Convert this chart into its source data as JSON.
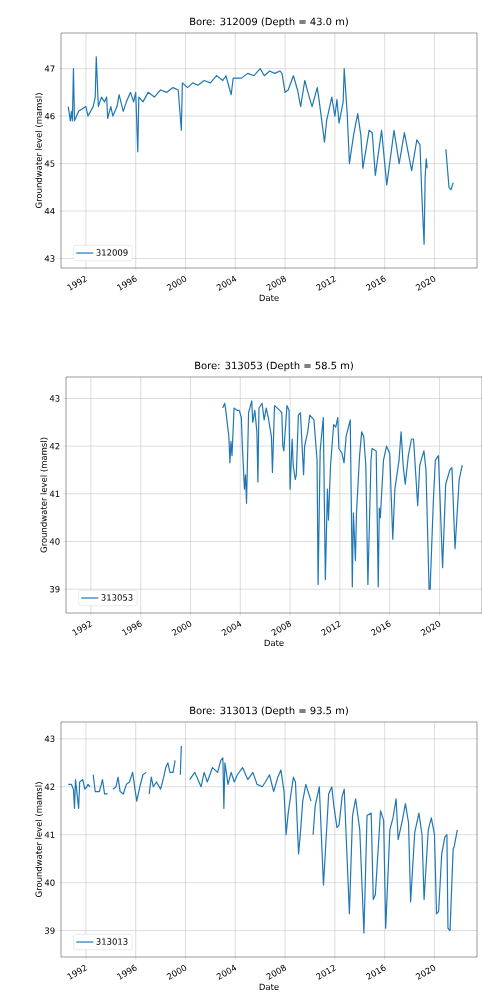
{
  "chart_data": [
    {
      "type": "line",
      "title": "Bore: 312009 (Depth = 43.0 m)",
      "xlabel": "Date",
      "ylabel": "Groundwater level (mamsl)",
      "x": [
        "1990-08",
        "1990-10",
        "1990-11",
        "1990-12",
        "1991-01",
        "1991-02",
        "1991-06",
        "1992-01",
        "1992-03",
        "1992-08",
        "1992-10",
        "1992-11",
        "1993-01",
        "1993-04",
        "1993-07",
        "1993-09",
        "1993-10",
        "1994-01",
        "1994-03",
        "1994-07",
        "1994-09",
        "1995-01",
        "1995-04",
        "1995-08",
        "1995-11",
        "1996-01",
        "1996-03",
        "1996-04",
        "1996-08",
        "1997-01",
        "1997-07",
        "1998-01",
        "1998-07",
        "1999-01",
        "1999-06",
        "1999-09",
        "1999-10",
        "2000-03",
        "2000-08",
        "2001-01",
        "2001-07",
        "2002-01",
        "2002-07",
        "2003-01",
        "2003-04",
        "2003-09",
        "2003-11",
        "2004-07",
        "2005-01",
        "2005-07",
        "2006-01",
        "2006-05",
        "2006-10",
        "2007-03",
        "2007-08",
        "2007-10",
        "2008-01",
        "2008-04",
        "2008-09",
        "2009-01",
        "2009-04",
        "2009-08",
        "2009-11",
        "2010-03",
        "2010-08",
        "2010-10",
        "2011-03",
        "2011-05",
        "2011-10",
        "2012-01",
        "2012-03",
        "2012-05",
        "2012-09",
        "2012-10",
        "2013-01",
        "2013-03",
        "2013-07",
        "2013-11",
        "2014-02",
        "2014-04",
        "2014-10",
        "2015-01",
        "2015-04",
        "2015-10",
        "2016-03",
        "2016-07",
        "2016-10",
        "2017-03",
        "2017-08",
        "2018-03",
        "2018-08",
        "2018-11",
        "2019-01",
        "2019-03",
        "2019-04",
        "2019-05",
        "2019-06",
        "2020-01",
        "2020-12",
        "2021-03",
        "2021-05",
        "2021-07"
      ],
      "series": [
        {
          "name": "312009",
          "color": "#1f77b4",
          "values": [
            46.2,
            45.9,
            46.1,
            45.9,
            47.0,
            45.9,
            46.1,
            46.2,
            46.0,
            46.2,
            46.4,
            47.25,
            46.2,
            46.4,
            46.3,
            46.4,
            45.95,
            46.2,
            46.0,
            46.2,
            46.45,
            46.1,
            46.3,
            46.5,
            46.3,
            46.5,
            45.25,
            46.4,
            46.3,
            46.5,
            46.4,
            46.55,
            46.5,
            46.6,
            46.55,
            45.7,
            46.7,
            46.6,
            46.7,
            46.65,
            46.75,
            46.7,
            46.85,
            46.75,
            46.85,
            46.45,
            46.8,
            46.8,
            46.9,
            46.85,
            47.0,
            46.85,
            46.95,
            46.9,
            46.95,
            46.9,
            46.5,
            46.55,
            46.85,
            46.55,
            46.2,
            46.75,
            46.5,
            46.2,
            46.6,
            46.3,
            45.45,
            45.9,
            46.4,
            46.0,
            46.35,
            45.85,
            46.3,
            47.0,
            46.0,
            45.0,
            45.6,
            46.05,
            45.6,
            44.9,
            45.7,
            45.65,
            44.75,
            45.7,
            44.55,
            45.2,
            45.7,
            45.0,
            45.65,
            44.85,
            45.5,
            45.4,
            44.25,
            43.3,
            44.7,
            45.1,
            44.9,
            null,
            45.3,
            44.5,
            44.45,
            44.6
          ]
        }
      ],
      "xlim": [
        "1990-01",
        "2023-06"
      ],
      "ylim": [
        42.8,
        47.75
      ],
      "xticks": [
        "1992",
        "1996",
        "2000",
        "2004",
        "2008",
        "2012",
        "2016",
        "2020"
      ],
      "yticks": [
        43,
        44,
        45,
        46,
        47
      ],
      "grid": true,
      "legend": "bottom left"
    },
    {
      "type": "line",
      "title": "Bore: 313053 (Depth = 58.5 m)",
      "xlabel": "Date",
      "ylabel": "Groundwater level (mamsl)",
      "x": [
        "2002-08",
        "2002-10",
        "2002-11",
        "2003-02",
        "2003-03",
        "2003-04",
        "2003-05",
        "2003-07",
        "2003-10",
        "2003-12",
        "2004-02",
        "2004-03",
        "2004-05",
        "2004-06",
        "2004-07",
        "2004-09",
        "2004-12",
        "2005-01",
        "2005-03",
        "2005-05",
        "2005-06",
        "2005-07",
        "2005-10",
        "2005-12",
        "2006-02",
        "2006-04",
        "2006-07",
        "2006-08",
        "2006-10",
        "2007-03",
        "2007-05",
        "2007-06",
        "2007-07",
        "2007-10",
        "2007-12",
        "2008-01",
        "2008-03",
        "2008-04",
        "2008-06",
        "2008-07",
        "2008-09",
        "2008-11",
        "2009-02",
        "2009-03",
        "2009-06",
        "2009-08",
        "2009-12",
        "2010-03",
        "2010-04",
        "2010-06",
        "2010-09",
        "2010-11",
        "2011-01",
        "2011-02",
        "2011-04",
        "2011-07",
        "2011-09",
        "2011-11",
        "2011-12",
        "2012-03",
        "2012-05",
        "2012-07",
        "2012-11",
        "2013-01",
        "2013-02",
        "2013-04",
        "2013-05",
        "2013-08",
        "2013-10",
        "2013-12",
        "2014-02",
        "2014-04",
        "2014-07",
        "2014-08",
        "2014-12",
        "2015-02",
        "2015-03",
        "2015-04",
        "2015-07",
        "2015-10",
        "2016-01",
        "2016-04",
        "2016-06",
        "2016-10",
        "2016-12",
        "2017-02",
        "2017-04",
        "2017-07",
        "2017-10",
        "2017-12",
        "2018-04",
        "2018-06",
        "2018-10",
        "2018-12",
        "2019-03",
        "2019-04",
        "2019-07",
        "2019-09",
        "2019-12",
        "2020-04",
        "2020-07",
        "2020-11",
        "2021-01",
        "2021-04",
        "2021-08",
        "2021-11"
      ],
      "series": [
        {
          "name": "313053",
          "color": "#1f77b4",
          "values": [
            42.8,
            42.9,
            42.75,
            42.2,
            41.65,
            42.1,
            41.8,
            42.8,
            42.75,
            42.75,
            42.6,
            42.0,
            41.1,
            41.4,
            40.8,
            42.7,
            42.95,
            42.5,
            42.75,
            42.3,
            41.25,
            42.8,
            42.9,
            42.55,
            42.8,
            42.6,
            42.2,
            41.45,
            42.85,
            42.75,
            42.7,
            42.0,
            41.9,
            42.85,
            42.75,
            41.1,
            42.15,
            41.6,
            41.3,
            41.4,
            42.65,
            42.7,
            41.4,
            42.0,
            42.3,
            42.65,
            42.55,
            41.7,
            39.1,
            41.9,
            42.6,
            39.2,
            41.1,
            40.45,
            41.6,
            42.45,
            42.4,
            42.6,
            41.95,
            41.85,
            41.65,
            42.2,
            42.55,
            39.05,
            40.6,
            39.6,
            40.6,
            41.8,
            42.3,
            42.2,
            41.6,
            39.1,
            41.7,
            41.95,
            41.9,
            39.05,
            40.7,
            40.5,
            41.7,
            42.0,
            41.85,
            40.05,
            41.1,
            41.7,
            42.3,
            41.6,
            41.2,
            41.8,
            42.15,
            42.15,
            40.75,
            41.6,
            41.9,
            41.5,
            39.0,
            39.0,
            40.8,
            41.7,
            41.8,
            39.45,
            41.2,
            41.5,
            41.55,
            39.85,
            41.3,
            41.6
          ]
        }
      ],
      "xlim": [
        "1990-01",
        "2023-06"
      ],
      "ylim": [
        38.5,
        43.45
      ],
      "xticks": [
        "1992",
        "1996",
        "2000",
        "2004",
        "2008",
        "2012",
        "2016",
        "2020"
      ],
      "yticks": [
        39,
        40,
        41,
        42,
        43
      ],
      "grid": true,
      "legend": "bottom left"
    },
    {
      "type": "line",
      "title": "Bore: 313013 (Depth = 93.5 m)",
      "xlabel": "Date",
      "ylabel": "Groundwater level (mamsl)",
      "x": [
        "1990-08",
        "1990-11",
        "1991-01",
        "1991-02",
        "1991-03",
        "1991-04",
        "1991-06",
        "1991-07",
        "1991-10",
        "1991-12",
        "1992-02",
        "1992-03",
        "1992-05",
        "1992-07",
        "1992-08",
        "1992-10",
        "1993-02",
        "1993-05",
        "1993-07",
        "1993-10",
        "1994-01",
        "1994-03",
        "1994-06",
        "1994-08",
        "1994-10",
        "1995-01",
        "1995-04",
        "1995-07",
        "1995-10",
        "1996-02",
        "1996-05",
        "1996-08",
        "1996-11",
        "1996-12",
        "1997-02",
        "1997-04",
        "1997-06",
        "1997-09",
        "1998-01",
        "1998-04",
        "1998-06",
        "1998-08",
        "1998-10",
        "1999-01",
        "1999-03",
        "1999-06",
        "1999-08",
        "1999-09",
        "2000-02",
        "2000-05",
        "2000-10",
        "2001-01",
        "2001-04",
        "2001-07",
        "2001-10",
        "2002-03",
        "2002-08",
        "2002-11",
        "2003-01",
        "2003-02",
        "2003-03",
        "2003-06",
        "2003-09",
        "2003-12",
        "2004-03",
        "2004-08",
        "2005-01",
        "2005-06",
        "2005-10",
        "2006-03",
        "2006-06",
        "2006-10",
        "2007-02",
        "2007-06",
        "2007-09",
        "2007-12",
        "2008-02",
        "2008-04",
        "2008-06",
        "2008-09",
        "2008-11",
        "2009-02",
        "2009-04",
        "2009-06",
        "2009-09",
        "2010-02",
        "2010-03",
        "2010-04",
        "2010-06",
        "2010-10",
        "2011-02",
        "2011-07",
        "2011-10",
        "2011-12",
        "2012-03",
        "2012-05",
        "2012-08",
        "2012-10",
        "2013-03",
        "2013-06",
        "2013-09",
        "2014-01",
        "2014-05",
        "2014-08",
        "2014-12",
        "2015-02",
        "2015-04",
        "2015-09",
        "2015-12",
        "2016-02",
        "2016-06",
        "2016-09",
        "2016-12",
        "2017-02",
        "2017-06",
        "2017-09",
        "2017-12",
        "2018-02",
        "2018-06",
        "2018-10",
        "2019-01",
        "2019-03",
        "2019-07",
        "2019-10",
        "2020-01",
        "2020-03",
        "2020-05",
        "2020-08",
        "2020-11",
        "2021-01",
        "2021-02",
        "2021-04",
        "2021-07",
        "2021-08",
        "2021-11"
      ],
      "series": [
        {
          "name": "313013",
          "color": "#1f77b4",
          "values": [
            42.05,
            42.05,
            41.95,
            41.55,
            42.15,
            41.95,
            41.55,
            42.1,
            42.15,
            41.95,
            42.0,
            42.05,
            42.0,
            null,
            42.25,
            41.9,
            41.9,
            42.15,
            41.85,
            41.85,
            null,
            41.95,
            42.0,
            42.2,
            41.9,
            41.85,
            42.05,
            42.1,
            42.3,
            41.7,
            42.0,
            42.25,
            42.3,
            null,
            41.85,
            42.2,
            42.0,
            42.1,
            41.95,
            42.2,
            42.4,
            42.5,
            42.3,
            42.3,
            42.55,
            null,
            42.25,
            42.85,
            null,
            42.15,
            42.3,
            42.15,
            42.0,
            42.3,
            42.1,
            42.4,
            42.3,
            42.55,
            42.6,
            41.55,
            42.5,
            42.05,
            42.3,
            42.1,
            42.25,
            42.4,
            42.15,
            42.3,
            42.05,
            42.0,
            42.1,
            42.25,
            41.9,
            42.2,
            42.35,
            41.9,
            41.0,
            41.45,
            41.75,
            42.2,
            42.1,
            40.6,
            41.1,
            41.7,
            42.05,
            41.7,
            null,
            41.0,
            41.6,
            42.0,
            39.95,
            41.85,
            42.0,
            41.6,
            41.15,
            41.2,
            41.8,
            41.95,
            39.35,
            41.4,
            41.75,
            41.1,
            38.95,
            41.4,
            41.45,
            39.65,
            39.75,
            41.5,
            41.3,
            39.05,
            41.1,
            41.35,
            41.75,
            40.9,
            41.3,
            41.65,
            41.25,
            39.6,
            41.05,
            41.45,
            41.0,
            39.65,
            41.1,
            41.35,
            41.0,
            39.35,
            39.4,
            40.6,
            40.95,
            41.0,
            39.05,
            39.0,
            40.7,
            40.75,
            41.1
          ]
        }
      ],
      "xlim": [
        "1990-01",
        "2023-06"
      ],
      "ylim": [
        38.45,
        43.35
      ],
      "xticks": [
        "1992",
        "1996",
        "2000",
        "2004",
        "2008",
        "2012",
        "2016",
        "2020"
      ],
      "yticks": [
        39,
        40,
        41,
        42,
        43
      ],
      "grid": true,
      "legend": "bottom left"
    }
  ]
}
